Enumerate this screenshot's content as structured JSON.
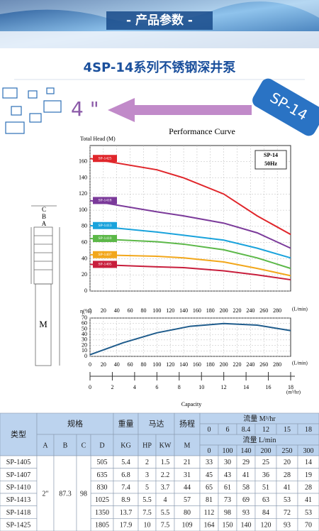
{
  "header": {
    "banner": "- 产品参数 -",
    "title": "4SP-14系列不锈钢深井泵",
    "size": "4 \"",
    "badge": "SP-14"
  },
  "diagram": {
    "labels": [
      "C",
      "B",
      "A",
      "M"
    ]
  },
  "chart_data": [
    {
      "type": "line",
      "title": "Performance Curve",
      "y_label": "Total Head (M)",
      "x_unit": "(L/min)",
      "legend_title": "SP-14",
      "legend_sub": "50Hz",
      "x": [
        0,
        100,
        140,
        200,
        250,
        300
      ],
      "xlim": [
        0,
        300
      ],
      "xticks": [
        0,
        20,
        40,
        60,
        80,
        100,
        120,
        140,
        160,
        180,
        200,
        220,
        240,
        260,
        280
      ],
      "ylim": [
        0,
        180
      ],
      "yticks": [
        0,
        20,
        40,
        60,
        80,
        100,
        120,
        140,
        160
      ],
      "grid": true,
      "series": [
        {
          "name": "SP-1425",
          "color": "#e0262b",
          "values": [
            164,
            150,
            140,
            120,
            93,
            70
          ]
        },
        {
          "name": "SP-1418",
          "color": "#7b3a9a",
          "values": [
            112,
            98,
            93,
            84,
            72,
            53
          ]
        },
        {
          "name": "SP-1413",
          "color": "#1aa3dc",
          "values": [
            81,
            73,
            69,
            63,
            53,
            41
          ]
        },
        {
          "name": "SP-1410",
          "color": "#5cb848",
          "values": [
            65,
            61,
            58,
            51,
            41,
            28
          ]
        },
        {
          "name": "SP-1407",
          "color": "#f2a71b",
          "values": [
            45,
            43,
            41,
            36,
            28,
            19
          ]
        },
        {
          "name": "SP-1405",
          "color": "#c81e3c",
          "values": [
            33,
            30,
            29,
            25,
            20,
            14
          ]
        }
      ]
    },
    {
      "type": "line",
      "y_label": "η(%)",
      "x_unit": "(L/min)",
      "x_label": "Capacity",
      "x2_unit": "(m³/hr)",
      "x": [
        0,
        50,
        100,
        150,
        200,
        250,
        300
      ],
      "xlim": [
        0,
        300
      ],
      "xticks": [
        0,
        20,
        40,
        60,
        80,
        100,
        120,
        140,
        160,
        180,
        200,
        220,
        240,
        260,
        280
      ],
      "ylim": [
        0,
        70
      ],
      "yticks": [
        0,
        10,
        20,
        30,
        40,
        50,
        60,
        70
      ],
      "grid": true,
      "x2lim": [
        0,
        18
      ],
      "x2ticks": [
        0,
        2,
        4,
        6,
        8,
        10,
        12,
        14,
        16,
        18
      ],
      "series": [
        {
          "color": "#1f5c8c",
          "values": [
            3,
            25,
            43,
            55,
            60,
            57,
            47
          ]
        }
      ]
    }
  ],
  "table": {
    "type_header": "类型",
    "spec_header": "规格",
    "weight_header": "重量",
    "motor_header": "马达",
    "head_header": "扬程",
    "flow_m3_header": "流量  M³/hr",
    "flow_l_header": "流量  L/min",
    "sub_headers": [
      "A",
      "B",
      "C",
      "D",
      "KG",
      "HP",
      "KW",
      "M"
    ],
    "flow_m3": [
      0,
      6,
      8.4,
      12,
      15,
      18
    ],
    "flow_l": [
      0,
      100,
      140,
      200,
      250,
      300
    ],
    "shared": [
      "2\"",
      87.3,
      98
    ],
    "rows": [
      [
        "SP-1405",
        505,
        5.4,
        2,
        1.5,
        21,
        33,
        30,
        29,
        25,
        20,
        14
      ],
      [
        "SP-1407",
        635,
        6.8,
        3,
        2.2,
        31,
        45,
        43,
        41,
        36,
        28,
        19
      ],
      [
        "SP-1410",
        830,
        7.4,
        5,
        3.7,
        44,
        65,
        61,
        58,
        51,
        41,
        28
      ],
      [
        "SP-1413",
        1025,
        8.9,
        5.5,
        4,
        57,
        81,
        73,
        69,
        63,
        53,
        41
      ],
      [
        "SP-1418",
        1350,
        13.7,
        7.5,
        5.5,
        80,
        112,
        98,
        93,
        84,
        72,
        53
      ],
      [
        "SP-1425",
        1805,
        17.9,
        10,
        7.5,
        109,
        164,
        150,
        140,
        120,
        93,
        70
      ]
    ]
  }
}
